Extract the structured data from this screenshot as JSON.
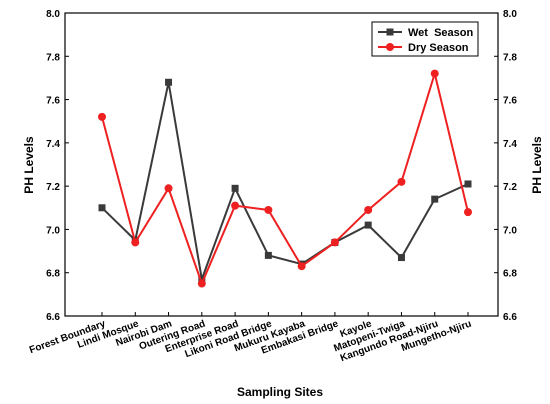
{
  "chart_data": {
    "type": "line",
    "title": "",
    "xlabel": "Sampling Sites",
    "ylabel_left": "PH Levels",
    "ylabel_right": "PH Levels",
    "ylim": [
      6.6,
      8.0
    ],
    "yticks": [
      "6.6",
      "6.8",
      "7.0",
      "7.2",
      "7.4",
      "7.6",
      "7.8",
      "8.0"
    ],
    "grid": false,
    "legend_position": "top-right",
    "categories": [
      "Forest Boundary",
      "Lindi Mosque",
      "Nairobi Dam",
      "Outering Road",
      "Enterprise Road",
      "Likoni Road Bridge",
      "Mukuru Kayaba",
      "Embakasi Bridge",
      "Kayole",
      "Matopeni-Twiga",
      "Kangundo Road-Njiru",
      "Mungetho-Njiru"
    ],
    "series": [
      {
        "name": "Wet  Season",
        "color": "#3a3a3a",
        "marker": "square",
        "values": [
          7.1,
          6.95,
          7.68,
          6.77,
          7.19,
          6.88,
          6.84,
          6.94,
          7.02,
          6.87,
          7.14,
          7.21
        ]
      },
      {
        "name": "Dry Season",
        "color": "#ee2020",
        "marker": "circle",
        "values": [
          7.52,
          6.94,
          7.19,
          6.75,
          7.11,
          7.09,
          6.83,
          6.94,
          7.09,
          7.22,
          7.72,
          7.08
        ]
      }
    ]
  }
}
